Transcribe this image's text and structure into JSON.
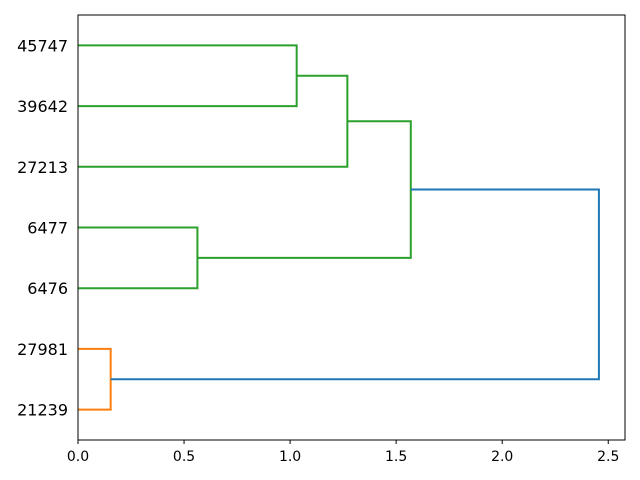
{
  "figure": {
    "title": "",
    "background": "#ffffff"
  },
  "chart_data": {
    "type": "dendrogram",
    "orientation": "right",
    "title": "",
    "xlabel": "",
    "ylabel": "",
    "leaves": [
      {
        "label": "45747",
        "pos": 65
      },
      {
        "label": "39642",
        "pos": 55
      },
      {
        "label": "27213",
        "pos": 45
      },
      {
        "label": "6477",
        "pos": 35
      },
      {
        "label": "6476",
        "pos": 25
      },
      {
        "label": "27981",
        "pos": 15
      },
      {
        "label": "21239",
        "pos": 5
      }
    ],
    "links": [
      {
        "name": "merge-45747-39642",
        "y1": 65,
        "h1": 0,
        "y2": 55,
        "h2": 0,
        "distance": 1.031,
        "color": "green"
      },
      {
        "name": "merge-pair-27213",
        "y1": 60,
        "h1": 1.031,
        "y2": 45,
        "h2": 0,
        "distance": 1.27,
        "color": "green"
      },
      {
        "name": "merge-6477-6476",
        "y1": 35,
        "h1": 0,
        "y2": 25,
        "h2": 0,
        "distance": 0.563,
        "color": "green"
      },
      {
        "name": "merge-green-clusters",
        "y1": 52.5,
        "h1": 1.27,
        "y2": 30,
        "h2": 0.563,
        "distance": 1.569,
        "color": "green"
      },
      {
        "name": "merge-27981-21239",
        "y1": 15,
        "h1": 0,
        "y2": 5,
        "h2": 0,
        "distance": 0.154,
        "color": "orange"
      },
      {
        "name": "merge-root",
        "y1": 41.25,
        "h1": 1.569,
        "y2": 10,
        "h2": 0.154,
        "distance": 2.456,
        "color": "blue"
      }
    ],
    "colors": {
      "blue": "#1f77b4",
      "orange": "#ff7f0e",
      "green": "#2ca02c",
      "spine": "#000000"
    },
    "xticks": [
      {
        "label": "0.0",
        "value": 0.0
      },
      {
        "label": "0.5",
        "value": 0.5
      },
      {
        "label": "1.0",
        "value": 1.0
      },
      {
        "label": "1.5",
        "value": 1.5
      },
      {
        "label": "2.0",
        "value": 2.0
      },
      {
        "label": "2.5",
        "value": 2.5
      }
    ],
    "xlim": [
      0,
      2.579
    ],
    "ylim": [
      0,
      70
    ],
    "grid": false,
    "legend": null
  }
}
